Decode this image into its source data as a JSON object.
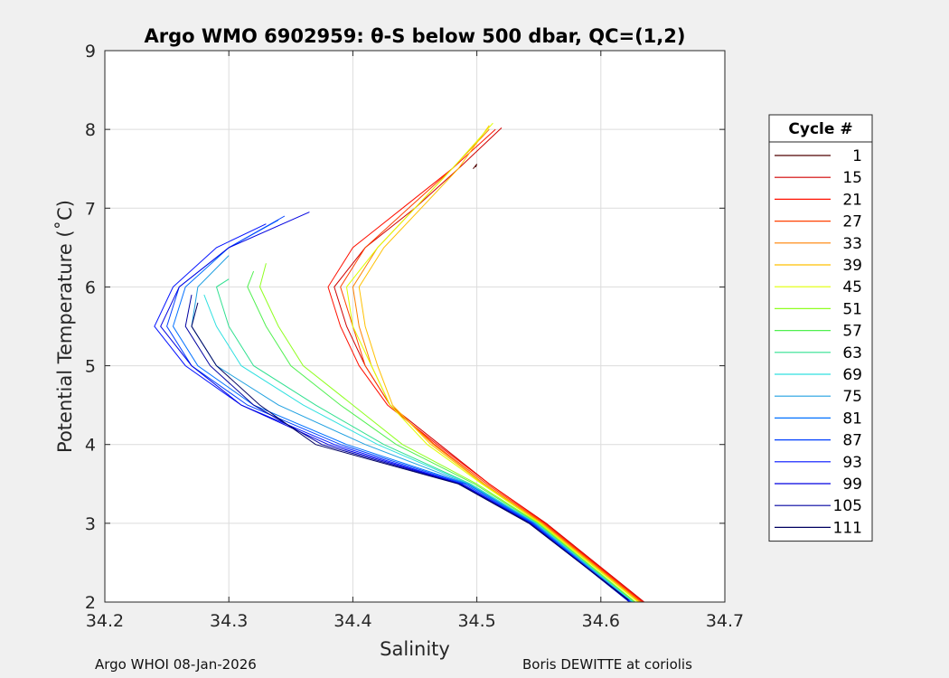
{
  "chart_data": {
    "type": "line",
    "title": "Argo WMO 6902959: θ-S below 500 dbar,  QC=(1,2)",
    "xlabel": "Salinity",
    "ylabel": "Potential Temperature (˚C)",
    "xlim": [
      34.2,
      34.7
    ],
    "ylim": [
      2,
      9
    ],
    "xticks": [
      "34.2",
      "34.3",
      "34.4",
      "34.5",
      "34.6",
      "34.7"
    ],
    "yticks": [
      "2",
      "3",
      "4",
      "5",
      "6",
      "7",
      "8",
      "9"
    ],
    "grid": true,
    "legend_title": "Cycle #",
    "legend_placement": "right-outside",
    "series": [
      {
        "name": "1",
        "color": "#500000",
        "points": [
          [
            34.497,
            7.5
          ],
          [
            34.5,
            7.56
          ],
          [
            34.499,
            7.52
          ]
        ]
      },
      {
        "name": "15",
        "color": "#d00000",
        "points": [
          [
            34.635,
            2
          ],
          [
            34.556,
            3
          ],
          [
            34.51,
            3.5
          ],
          [
            34.47,
            4
          ],
          [
            34.43,
            4.5
          ],
          [
            34.41,
            5
          ],
          [
            34.395,
            5.5
          ],
          [
            34.385,
            6
          ],
          [
            34.41,
            6.5
          ],
          [
            34.45,
            7
          ],
          [
            34.485,
            7.5
          ],
          [
            34.52,
            8.02
          ]
        ]
      },
      {
        "name": "21",
        "color": "#ff1000",
        "points": [
          [
            34.634,
            2
          ],
          [
            34.555,
            3
          ],
          [
            34.51,
            3.5
          ],
          [
            34.468,
            4
          ],
          [
            34.428,
            4.5
          ],
          [
            34.405,
            5
          ],
          [
            34.39,
            5.5
          ],
          [
            34.38,
            6
          ],
          [
            34.4,
            6.5
          ],
          [
            34.44,
            7
          ],
          [
            34.48,
            7.5
          ],
          [
            34.515,
            8
          ]
        ]
      },
      {
        "name": "27",
        "color": "#ff4000",
        "points": [
          [
            34.633,
            2
          ],
          [
            34.554,
            3
          ],
          [
            34.508,
            3.5
          ],
          [
            34.466,
            4
          ],
          [
            34.43,
            4.5
          ],
          [
            34.41,
            5
          ],
          [
            34.4,
            5.5
          ],
          [
            34.39,
            6
          ],
          [
            34.41,
            6.5
          ],
          [
            34.445,
            7
          ],
          [
            34.48,
            7.5
          ]
        ]
      },
      {
        "name": "33",
        "color": "#ff8000",
        "points": [
          [
            34.632,
            2
          ],
          [
            34.553,
            3
          ],
          [
            34.506,
            3.5
          ],
          [
            34.465,
            4
          ],
          [
            34.43,
            4.5
          ],
          [
            34.415,
            5
          ],
          [
            34.405,
            5.5
          ],
          [
            34.4,
            6
          ],
          [
            34.42,
            6.5
          ],
          [
            34.45,
            7
          ],
          [
            34.48,
            7.5
          ],
          [
            34.51,
            8
          ]
        ]
      },
      {
        "name": "39",
        "color": "#ffc000",
        "points": [
          [
            34.631,
            2
          ],
          [
            34.552,
            3
          ],
          [
            34.505,
            3.5
          ],
          [
            34.463,
            4
          ],
          [
            34.432,
            4.5
          ],
          [
            34.42,
            5
          ],
          [
            34.41,
            5.5
          ],
          [
            34.405,
            6
          ],
          [
            34.425,
            6.5
          ],
          [
            34.455,
            7
          ],
          [
            34.485,
            7.5
          ],
          [
            34.51,
            8.05
          ]
        ]
      },
      {
        "name": "45",
        "color": "#e0ff00",
        "points": [
          [
            34.63,
            2
          ],
          [
            34.551,
            3
          ],
          [
            34.504,
            3.5
          ],
          [
            34.46,
            4
          ],
          [
            34.43,
            4.5
          ],
          [
            34.415,
            5
          ],
          [
            34.4,
            5.5
          ],
          [
            34.395,
            6
          ],
          [
            34.42,
            6.5
          ],
          [
            34.45,
            7
          ],
          [
            34.48,
            7.5
          ],
          [
            34.513,
            8.08
          ]
        ]
      },
      {
        "name": "51",
        "color": "#90ff20",
        "points": [
          [
            34.628,
            2
          ],
          [
            34.55,
            3
          ],
          [
            34.5,
            3.5
          ],
          [
            34.44,
            4
          ],
          [
            34.4,
            4.5
          ],
          [
            34.36,
            5
          ],
          [
            34.34,
            5.5
          ],
          [
            34.325,
            6
          ],
          [
            34.33,
            6.3
          ]
        ]
      },
      {
        "name": "57",
        "color": "#50f050",
        "points": [
          [
            34.627,
            2
          ],
          [
            34.549,
            3
          ],
          [
            34.498,
            3.5
          ],
          [
            34.435,
            4
          ],
          [
            34.39,
            4.5
          ],
          [
            34.35,
            5
          ],
          [
            34.33,
            5.5
          ],
          [
            34.315,
            6
          ],
          [
            34.32,
            6.2
          ]
        ]
      },
      {
        "name": "63",
        "color": "#30e090",
        "points": [
          [
            34.626,
            2
          ],
          [
            34.548,
            3
          ],
          [
            34.495,
            3.5
          ],
          [
            34.425,
            4
          ],
          [
            34.37,
            4.5
          ],
          [
            34.32,
            5
          ],
          [
            34.3,
            5.5
          ],
          [
            34.29,
            6
          ],
          [
            34.3,
            6.1
          ]
        ]
      },
      {
        "name": "69",
        "color": "#30e0e0",
        "points": [
          [
            34.626,
            2
          ],
          [
            34.548,
            3
          ],
          [
            34.494,
            3.5
          ],
          [
            34.42,
            4
          ],
          [
            34.36,
            4.5
          ],
          [
            34.31,
            5
          ],
          [
            34.29,
            5.5
          ],
          [
            34.28,
            5.9
          ]
        ]
      },
      {
        "name": "75",
        "color": "#20a0e0",
        "points": [
          [
            34.625,
            2
          ],
          [
            34.547,
            3
          ],
          [
            34.493,
            3.5
          ],
          [
            34.41,
            4
          ],
          [
            34.34,
            4.5
          ],
          [
            34.29,
            5
          ],
          [
            34.27,
            5.5
          ],
          [
            34.275,
            6
          ],
          [
            34.3,
            6.4
          ]
        ]
      },
      {
        "name": "81",
        "color": "#0070ff",
        "points": [
          [
            34.624,
            2
          ],
          [
            34.546,
            3
          ],
          [
            34.492,
            3.5
          ],
          [
            34.395,
            4
          ],
          [
            34.32,
            4.5
          ],
          [
            34.275,
            5
          ],
          [
            34.255,
            5.5
          ],
          [
            34.265,
            6
          ],
          [
            34.3,
            6.5
          ],
          [
            34.34,
            6.85
          ]
        ]
      },
      {
        "name": "87",
        "color": "#0040ff",
        "points": [
          [
            34.624,
            2
          ],
          [
            34.545,
            3
          ],
          [
            34.49,
            3.5
          ],
          [
            34.39,
            4
          ],
          [
            34.315,
            4.5
          ],
          [
            34.27,
            5
          ],
          [
            34.25,
            5.5
          ],
          [
            34.26,
            6
          ],
          [
            34.3,
            6.5
          ],
          [
            34.345,
            6.9
          ]
        ]
      },
      {
        "name": "93",
        "color": "#0010ff",
        "points": [
          [
            34.623,
            2
          ],
          [
            34.544,
            3
          ],
          [
            34.488,
            3.5
          ],
          [
            34.385,
            4
          ],
          [
            34.31,
            4.5
          ],
          [
            34.265,
            5
          ],
          [
            34.24,
            5.5
          ],
          [
            34.255,
            6
          ],
          [
            34.29,
            6.5
          ],
          [
            34.33,
            6.8
          ]
        ]
      },
      {
        "name": "99",
        "color": "#0000e0",
        "points": [
          [
            34.623,
            2.02
          ],
          [
            34.543,
            3
          ],
          [
            34.487,
            3.5
          ],
          [
            34.38,
            4
          ],
          [
            34.31,
            4.5
          ],
          [
            34.27,
            5
          ],
          [
            34.245,
            5.5
          ],
          [
            34.26,
            6
          ],
          [
            34.3,
            6.5
          ],
          [
            34.365,
            6.95
          ]
        ]
      },
      {
        "name": "105",
        "color": "#0000a0",
        "points": [
          [
            34.622,
            2.02
          ],
          [
            34.543,
            3
          ],
          [
            34.486,
            3.5
          ],
          [
            34.375,
            4
          ],
          [
            34.32,
            4.5
          ],
          [
            34.285,
            5
          ],
          [
            34.265,
            5.5
          ],
          [
            34.27,
            5.9
          ]
        ]
      },
      {
        "name": "111",
        "color": "#000060",
        "points": [
          [
            34.622,
            2.03
          ],
          [
            34.542,
            3
          ],
          [
            34.485,
            3.5
          ],
          [
            34.37,
            4
          ],
          [
            34.325,
            4.5
          ],
          [
            34.29,
            5
          ],
          [
            34.27,
            5.5
          ],
          [
            34.275,
            5.8
          ]
        ]
      }
    ]
  },
  "footer": {
    "left": "Argo WHOI 08-Jan-2026",
    "right": "Boris DEWITTE at coriolis"
  }
}
